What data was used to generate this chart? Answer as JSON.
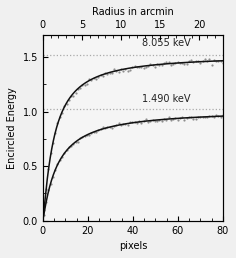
{
  "title_top": "Radius in arcmin",
  "xlabel": "pixels",
  "ylabel": "Encircled Energy",
  "xlim_pixels": [
    0,
    80
  ],
  "xlim_arcmin": [
    0,
    23
  ],
  "ylim": [
    0,
    1.7
  ],
  "yticks": [
    0,
    0.5,
    1.0,
    1.5
  ],
  "xticks_pixels": [
    0,
    20,
    40,
    60,
    80
  ],
  "xticks_arcmin": [
    0,
    5,
    10,
    15,
    20
  ],
  "label_8keV": "8.055 keV",
  "label_1keV": "1.490 keV",
  "asymptote_8keV": 1.52,
  "asymptote_1keV": 1.02,
  "bg_color": "#f0f0f0",
  "plot_bg": "#f5f5f5",
  "curve_color": "#111111",
  "dot_color": "#aaaaaa",
  "font_size": 7,
  "label_font_size": 7,
  "rc_8": 5.0,
  "rc_1": 6.5,
  "power_8": 1.2,
  "power_1": 1.1
}
